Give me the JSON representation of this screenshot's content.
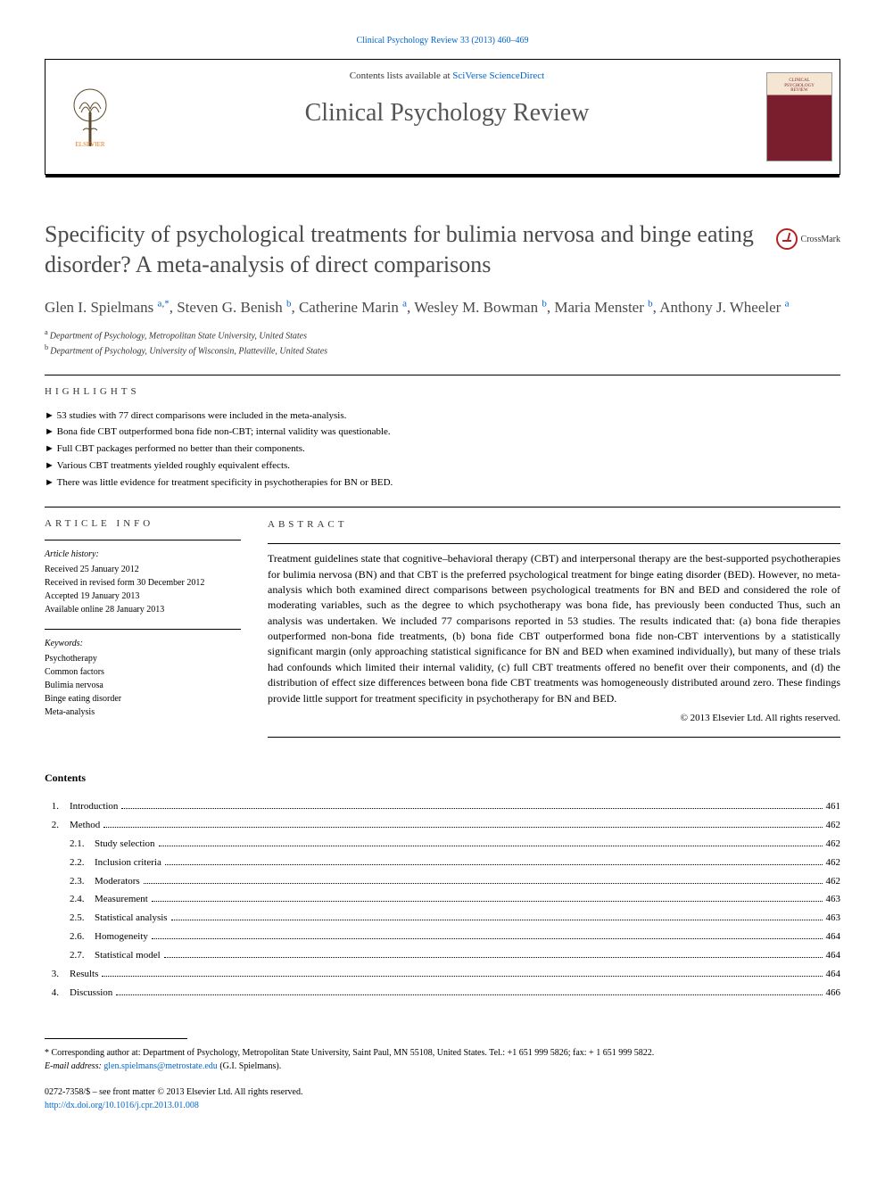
{
  "header": {
    "citation": "Clinical Psychology Review 33 (2013) 460–469",
    "contents_prefix": "Contents lists available at ",
    "contents_link": "SciVerse ScienceDirect",
    "journal_name": "Clinical Psychology Review",
    "elsevier_label": "ELSEVIER",
    "cover_line1": "CLINICAL",
    "cover_line2": "PSYCHOLOGY",
    "cover_line3": "REVIEW"
  },
  "crossmark_text": "CrossMark",
  "article": {
    "title": "Specificity of psychological treatments for bulimia nervosa and binge eating disorder? A meta-analysis of direct comparisons",
    "authors_html": "Glen I. Spielmans <a>a</a>,<a>*</a>, Steven G. Benish <sup>b</sup>, Catherine Marin <sup>a</sup>, Wesley M. Bowman <sup>b</sup>, Maria Menster <sup>b</sup>, Anthony J. Wheeler <sup>a</sup>",
    "authors": [
      {
        "name": "Glen I. Spielmans",
        "sup": "a,*"
      },
      {
        "name": "Steven G. Benish",
        "sup": "b"
      },
      {
        "name": "Catherine Marin",
        "sup": "a"
      },
      {
        "name": "Wesley M. Bowman",
        "sup": "b"
      },
      {
        "name": "Maria Menster",
        "sup": "b"
      },
      {
        "name": "Anthony J. Wheeler",
        "sup": "a"
      }
    ],
    "affiliations": [
      {
        "sup": "a",
        "text": "Department of Psychology, Metropolitan State University, United States"
      },
      {
        "sup": "b",
        "text": "Department of Psychology, University of Wisconsin, Platteville, United States"
      }
    ]
  },
  "highlights": {
    "heading": "HIGHLIGHTS",
    "items": [
      "53 studies with 77 direct comparisons were included in the meta-analysis.",
      "Bona fide CBT outperformed bona fide non-CBT; internal validity was questionable.",
      "Full CBT packages performed no better than their components.",
      "Various CBT treatments yielded roughly equivalent effects.",
      "There was little evidence for treatment specificity in psychotherapies for BN or BED."
    ]
  },
  "article_info": {
    "heading": "ARTICLE INFO",
    "history_label": "Article history:",
    "history": [
      "Received 25 January 2012",
      "Received in revised form 30 December 2012",
      "Accepted 19 January 2013",
      "Available online 28 January 2013"
    ],
    "keywords_label": "Keywords:",
    "keywords": [
      "Psychotherapy",
      "Common factors",
      "Bulimia nervosa",
      "Binge eating disorder",
      "Meta-analysis"
    ]
  },
  "abstract": {
    "heading": "ABSTRACT",
    "text": "Treatment guidelines state that cognitive–behavioral therapy (CBT) and interpersonal therapy are the best-supported psychotherapies for bulimia nervosa (BN) and that CBT is the preferred psychological treatment for binge eating disorder (BED). However, no meta-analysis which both examined direct comparisons between psychological treatments for BN and BED and considered the role of moderating variables, such as the degree to which psychotherapy was bona fide, has previously been conducted Thus, such an analysis was undertaken. We included 77 comparisons reported in 53 studies. The results indicated that: (a) bona fide therapies outperformed non-bona fide treatments, (b) bona fide CBT outperformed bona fide non-CBT interventions by a statistically significant margin (only approaching statistical significance for BN and BED when examined individually), but many of these trials had confounds which limited their internal validity, (c) full CBT treatments offered no benefit over their components, and (d) the distribution of effect size differences between bona fide CBT treatments was homogeneously distributed around zero. These findings provide little support for treatment specificity in psychotherapy for BN and BED.",
    "copyright": "© 2013 Elsevier Ltd. All rights reserved."
  },
  "contents": {
    "heading": "Contents",
    "items": [
      {
        "num": "1.",
        "title": "Introduction",
        "page": "461",
        "sub": false
      },
      {
        "num": "2.",
        "title": "Method",
        "page": "462",
        "sub": false
      },
      {
        "num": "2.1.",
        "title": "Study selection",
        "page": "462",
        "sub": true
      },
      {
        "num": "2.2.",
        "title": "Inclusion criteria",
        "page": "462",
        "sub": true
      },
      {
        "num": "2.3.",
        "title": "Moderators",
        "page": "462",
        "sub": true
      },
      {
        "num": "2.4.",
        "title": "Measurement",
        "page": "463",
        "sub": true
      },
      {
        "num": "2.5.",
        "title": "Statistical analysis",
        "page": "463",
        "sub": true
      },
      {
        "num": "2.6.",
        "title": "Homogeneity",
        "page": "464",
        "sub": true
      },
      {
        "num": "2.7.",
        "title": "Statistical model",
        "page": "464",
        "sub": true
      },
      {
        "num": "3.",
        "title": "Results",
        "page": "464",
        "sub": false
      },
      {
        "num": "4.",
        "title": "Discussion",
        "page": "466",
        "sub": false
      }
    ]
  },
  "footnote": {
    "star": "*",
    "text_prefix": "Corresponding author at: Department of Psychology, Metropolitan State University, Saint Paul, MN 55108, United States. Tel.: +1 651 999 5826; fax: + 1 651 999 5822.",
    "email_label": "E-mail address:",
    "email": "glen.spielmans@metrostate.edu",
    "email_suffix": "(G.I. Spielmans)."
  },
  "bottom": {
    "issn_line": "0272-7358/$ – see front matter © 2013 Elsevier Ltd. All rights reserved.",
    "doi": "http://dx.doi.org/10.1016/j.cpr.2013.01.008"
  },
  "colors": {
    "link": "#0066cc",
    "title_gray": "#4a4a4a",
    "crossmark_red": "#b22222",
    "cover_maroon": "#7a1e2e",
    "cover_cream": "#f5e6d3",
    "elsevier_orange": "#e67817"
  }
}
